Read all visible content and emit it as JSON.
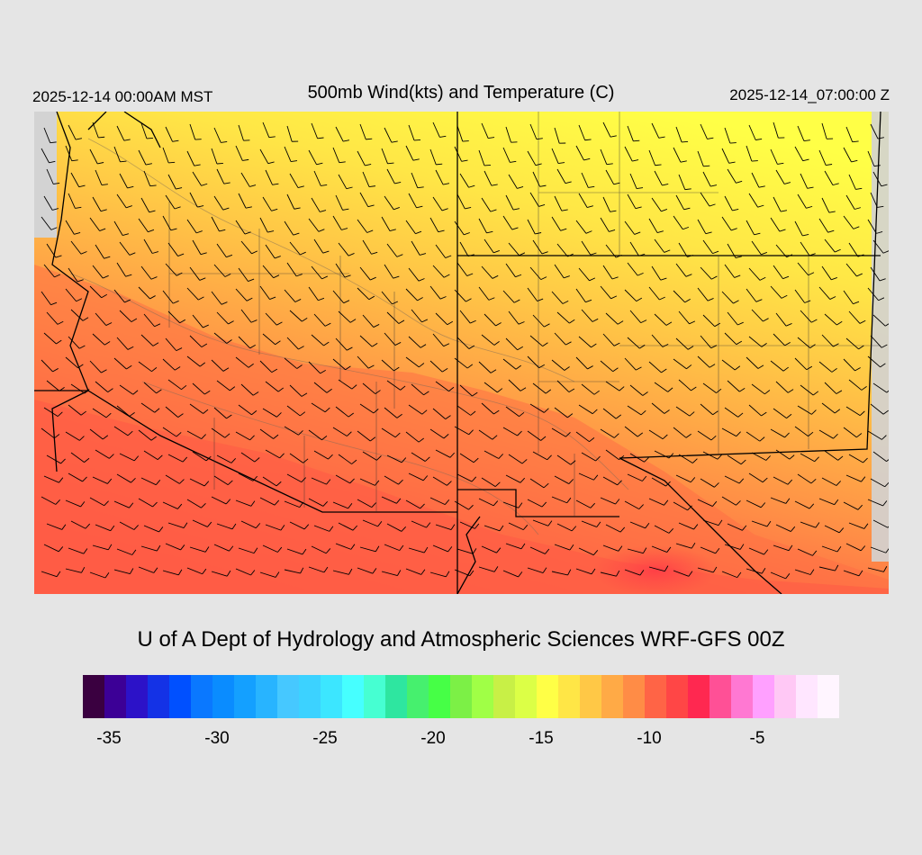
{
  "header": {
    "local_time": "2025-12-14 00:00AM MST",
    "title": "500mb Wind(kts) and Temperature (C)",
    "utc_time": "2025-12-14_07:00:00 Z"
  },
  "credit": "U of A Dept of Hydrology and Atmospheric Sciences WRF-GFS 00Z",
  "colorbar": {
    "colors": [
      "#3a0040",
      "#3c0096",
      "#2c12c8",
      "#1432e6",
      "#0050ff",
      "#0a78ff",
      "#0a8cff",
      "#14a0ff",
      "#28b4ff",
      "#46c8ff",
      "#3cd2ff",
      "#3ce6ff",
      "#46ffff",
      "#46ffd2",
      "#2ee6a0",
      "#46f06e",
      "#46ff46",
      "#7cf046",
      "#a0ff46",
      "#c8f046",
      "#dcff46",
      "#ffff46",
      "#ffe646",
      "#ffc846",
      "#ffaa46",
      "#ff8c46",
      "#ff6446",
      "#ff4646",
      "#ff2850",
      "#ff5096",
      "#ff78d2",
      "#ffa0ff",
      "#ffc8f5",
      "#ffe6ff",
      "#fff5ff"
    ],
    "ticks": [
      "-35",
      "-30",
      "-25",
      "-20",
      "-15",
      "-10",
      "-5"
    ],
    "tick_values": [
      -35,
      -30,
      -25,
      -20,
      -15,
      -10,
      -5
    ],
    "min": -36,
    "max": -1
  },
  "map": {
    "region": "Southwestern United States",
    "variables": [
      "500mb wind barbs (kts)",
      "500mb temperature (C)"
    ]
  }
}
